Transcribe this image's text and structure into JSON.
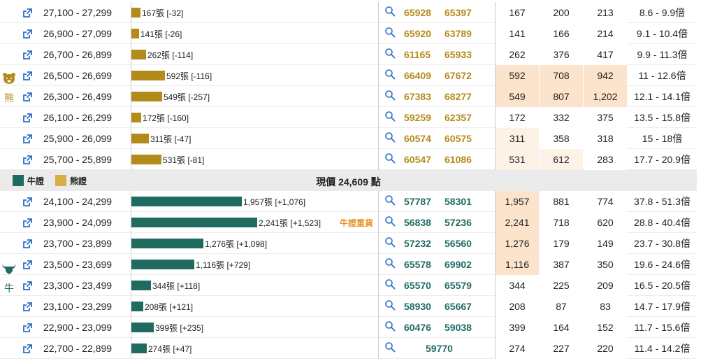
{
  "colors": {
    "bear": "#b38b1a",
    "bull": "#1f6b60",
    "bear_legend": "#d9ae45",
    "heat": [
      "#ffffff",
      "#fdf2e6",
      "#fbe3cc"
    ],
    "tag": "#e5972b",
    "icon": "#2b6fc6"
  },
  "icons": {
    "link": "external-link-icon",
    "search": "magnifier-icon",
    "bear": "bear-icon",
    "bull": "bull-icon"
  },
  "bear_side_label": "熊",
  "bull_side_label": "牛",
  "legend": {
    "bull_label": "牛證",
    "bear_label": "熊證"
  },
  "current_price": "現價 24,609 點",
  "bull_highlight_tag": "牛證重貨",
  "bear_rows": [
    {
      "range": "27,100 - 27,299",
      "qty": 167,
      "bar_label": "167張 [-32]",
      "codes": [
        "65928",
        "65397"
      ],
      "v1": "167",
      "v2": "200",
      "v3": "213",
      "ratio": "8.6 - 9.9倍",
      "heat": [
        0,
        0,
        0
      ]
    },
    {
      "range": "26,900 - 27,099",
      "qty": 141,
      "bar_label": "141張 [-26]",
      "codes": [
        "65920",
        "63789"
      ],
      "v1": "141",
      "v2": "166",
      "v3": "214",
      "ratio": "9.1 - 10.4倍",
      "heat": [
        0,
        0,
        0
      ]
    },
    {
      "range": "26,700 - 26,899",
      "qty": 262,
      "bar_label": "262張 [-114]",
      "codes": [
        "61165",
        "65933"
      ],
      "v1": "262",
      "v2": "376",
      "v3": "417",
      "ratio": "9.9 - 11.3倍",
      "heat": [
        0,
        0,
        0
      ]
    },
    {
      "range": "26,500 - 26,699",
      "qty": 592,
      "bar_label": "592張 [-116]",
      "codes": [
        "66409",
        "67672"
      ],
      "v1": "592",
      "v2": "708",
      "v3": "942",
      "ratio": "11 - 12.6倍",
      "heat": [
        2,
        2,
        2
      ]
    },
    {
      "range": "26,300 - 26,499",
      "qty": 549,
      "bar_label": "549張 [-257]",
      "codes": [
        "67383",
        "68277"
      ],
      "v1": "549",
      "v2": "807",
      "v3": "1,202",
      "ratio": "12.1 - 14.1倍",
      "heat": [
        2,
        2,
        2
      ]
    },
    {
      "range": "26,100 - 26,299",
      "qty": 172,
      "bar_label": "172張 [-160]",
      "codes": [
        "59259",
        "62357"
      ],
      "v1": "172",
      "v2": "332",
      "v3": "375",
      "ratio": "13.5 - 15.8倍",
      "heat": [
        0,
        0,
        0
      ]
    },
    {
      "range": "25,900 - 26,099",
      "qty": 311,
      "bar_label": "311張 [-47]",
      "codes": [
        "60574",
        "60575"
      ],
      "v1": "311",
      "v2": "358",
      "v3": "318",
      "ratio": "15 - 18倍",
      "heat": [
        1,
        0,
        0
      ]
    },
    {
      "range": "25,700 - 25,899",
      "qty": 531,
      "bar_label": "531張 [-81]",
      "codes": [
        "60547",
        "61086"
      ],
      "v1": "531",
      "v2": "612",
      "v3": "283",
      "ratio": "17.7 - 20.9倍",
      "heat": [
        1,
        1,
        0
      ]
    }
  ],
  "bull_rows": [
    {
      "range": "24,100 - 24,299",
      "qty": 1957,
      "bar_label": "1,957張 [+1,076]",
      "codes": [
        "57787",
        "58301"
      ],
      "v1": "1,957",
      "v2": "881",
      "v3": "774",
      "ratio": "37.8 - 51.3倍",
      "heat": [
        2,
        0,
        0
      ],
      "tag": false
    },
    {
      "range": "23,900 - 24,099",
      "qty": 2241,
      "bar_label": "2,241張 [+1,523]",
      "codes": [
        "56838",
        "57236"
      ],
      "v1": "2,241",
      "v2": "718",
      "v3": "620",
      "ratio": "28.8 - 40.4倍",
      "heat": [
        2,
        0,
        0
      ],
      "tag": true
    },
    {
      "range": "23,700 - 23,899",
      "qty": 1276,
      "bar_label": "1,276張 [+1,098]",
      "codes": [
        "57232",
        "56560"
      ],
      "v1": "1,276",
      "v2": "179",
      "v3": "149",
      "ratio": "23.7 - 30.8倍",
      "heat": [
        2,
        0,
        0
      ],
      "tag": false
    },
    {
      "range": "23,500 - 23,699",
      "qty": 1116,
      "bar_label": "1,116張 [+729]",
      "codes": [
        "65578",
        "69902"
      ],
      "v1": "1,116",
      "v2": "387",
      "v3": "350",
      "ratio": "19.6 - 24.6倍",
      "heat": [
        2,
        0,
        0
      ],
      "tag": false
    },
    {
      "range": "23,300 - 23,499",
      "qty": 344,
      "bar_label": "344張 [+118]",
      "codes": [
        "65570",
        "65579"
      ],
      "v1": "344",
      "v2": "225",
      "v3": "209",
      "ratio": "16.5 - 20.5倍",
      "heat": [
        0,
        0,
        0
      ],
      "tag": false
    },
    {
      "range": "23,100 - 23,299",
      "qty": 208,
      "bar_label": "208張 [+121]",
      "codes": [
        "58930",
        "65667"
      ],
      "v1": "208",
      "v2": "87",
      "v3": "83",
      "ratio": "14.7 - 17.9倍",
      "heat": [
        0,
        0,
        0
      ],
      "tag": false
    },
    {
      "range": "22,900 - 23,099",
      "qty": 399,
      "bar_label": "399張 [+235]",
      "codes": [
        "60476",
        "59038"
      ],
      "v1": "399",
      "v2": "164",
      "v3": "152",
      "ratio": "11.7 - 15.6倍",
      "heat": [
        0,
        0,
        0
      ],
      "tag": false
    },
    {
      "range": "22,700 - 22,899",
      "qty": 274,
      "bar_label": "274張 [+47]",
      "codes": [
        "59770"
      ],
      "v1": "274",
      "v2": "227",
      "v3": "220",
      "ratio": "11.4 - 14.2倍",
      "heat": [
        0,
        0,
        0
      ],
      "tag": false
    }
  ]
}
